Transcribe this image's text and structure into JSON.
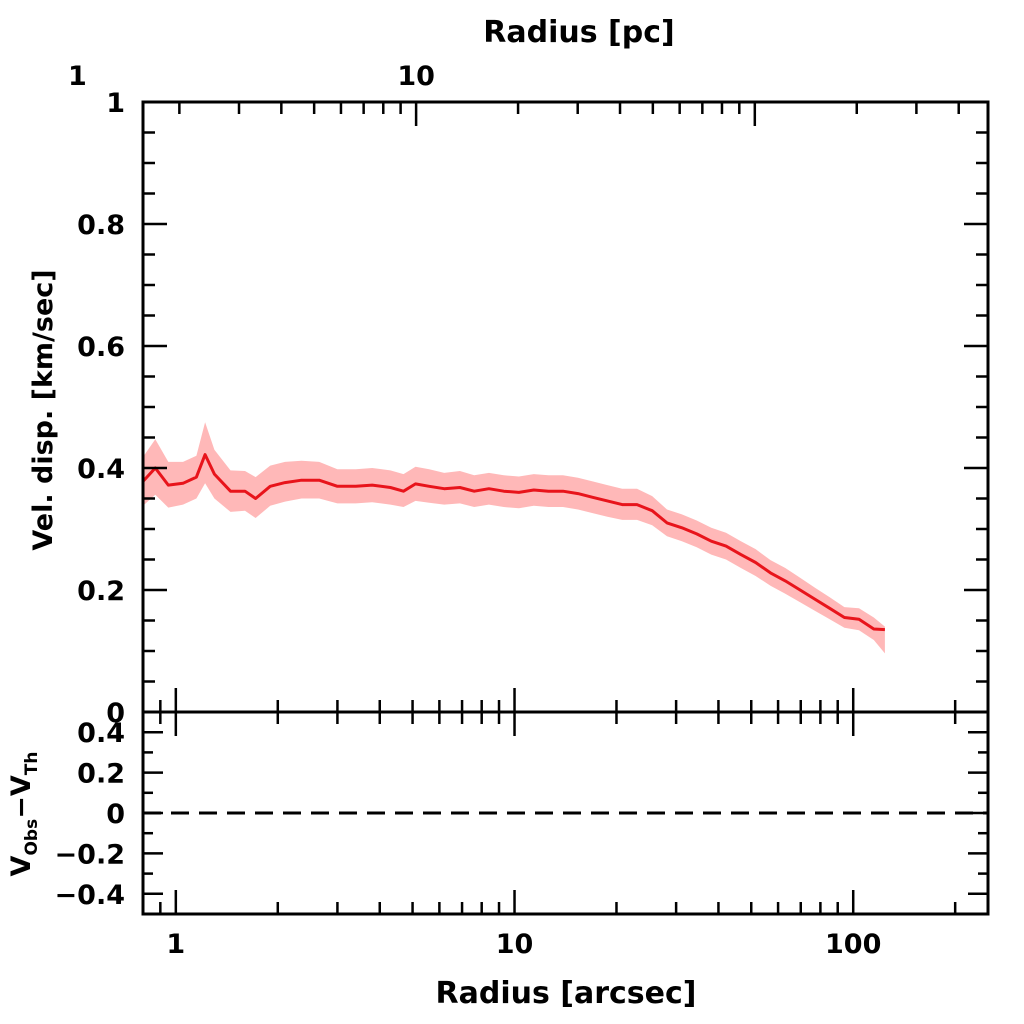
{
  "chart_data": [
    {
      "type": "area",
      "panel": "top",
      "xlabel": "Radius [arcsec]",
      "x2label": "Radius [pc]",
      "ylabel": "Vel. disp. [km/sec]",
      "xscale": "log",
      "xlim": [
        0.8,
        250
      ],
      "ylim": [
        0,
        1
      ],
      "x2scale": "log",
      "x2_at_x1": {
        "1": 1.9524,
        "10": 19.524
      },
      "x_ticklabels": [
        "1",
        "10",
        "100"
      ],
      "x2_ticklabels": [
        "1",
        "10"
      ],
      "y_ticklabels": [
        "0",
        "0.2",
        "0.4",
        "0.6",
        "0.8",
        "1"
      ],
      "grid": false,
      "x": [
        0.8,
        0.87,
        0.95,
        1.05,
        1.15,
        1.22,
        1.3,
        1.45,
        1.6,
        1.72,
        1.9,
        2.1,
        2.35,
        2.65,
        3.0,
        3.4,
        3.8,
        4.3,
        4.7,
        5.1,
        5.6,
        6.2,
        6.9,
        7.6,
        8.4,
        9.3,
        10.3,
        11.4,
        12.6,
        13.9,
        15.4,
        17.0,
        18.8,
        20.8,
        23.0,
        25.5,
        28.2,
        31.2,
        34.5,
        38.1,
        42.1,
        46.6,
        51.5,
        57.0,
        63.0,
        69.7,
        77.0,
        85.2,
        94.2,
        104,
        115,
        124
      ],
      "series": [
        {
          "values": [
            0.378,
            0.4,
            0.372,
            0.375,
            0.385,
            0.422,
            0.39,
            0.362,
            0.362,
            0.35,
            0.37,
            0.376,
            0.38,
            0.38,
            0.37,
            0.37,
            0.372,
            0.368,
            0.362,
            0.374,
            0.37,
            0.366,
            0.368,
            0.362,
            0.366,
            0.362,
            0.36,
            0.364,
            0.362,
            0.362,
            0.358,
            0.352,
            0.346,
            0.34,
            0.34,
            0.33,
            0.31,
            0.302,
            0.292,
            0.28,
            0.272,
            0.258,
            0.245,
            0.228,
            0.215,
            0.2,
            0.185,
            0.17,
            0.155,
            0.152,
            0.136,
            0.135
          ],
          "lower": [
            0.338,
            0.356,
            0.335,
            0.34,
            0.35,
            0.375,
            0.35,
            0.328,
            0.33,
            0.318,
            0.338,
            0.345,
            0.35,
            0.35,
            0.342,
            0.342,
            0.344,
            0.34,
            0.336,
            0.346,
            0.343,
            0.34,
            0.342,
            0.336,
            0.34,
            0.336,
            0.334,
            0.338,
            0.336,
            0.336,
            0.332,
            0.326,
            0.32,
            0.315,
            0.315,
            0.306,
            0.288,
            0.28,
            0.27,
            0.258,
            0.25,
            0.236,
            0.223,
            0.207,
            0.194,
            0.18,
            0.166,
            0.152,
            0.138,
            0.134,
            0.118,
            0.096
          ],
          "upper": [
            0.418,
            0.447,
            0.41,
            0.41,
            0.42,
            0.475,
            0.43,
            0.396,
            0.395,
            0.385,
            0.404,
            0.41,
            0.412,
            0.41,
            0.398,
            0.398,
            0.4,
            0.396,
            0.39,
            0.402,
            0.398,
            0.392,
            0.395,
            0.388,
            0.392,
            0.388,
            0.386,
            0.39,
            0.388,
            0.388,
            0.384,
            0.378,
            0.372,
            0.366,
            0.366,
            0.354,
            0.332,
            0.324,
            0.314,
            0.302,
            0.294,
            0.28,
            0.267,
            0.249,
            0.236,
            0.22,
            0.204,
            0.188,
            0.172,
            0.17,
            0.155,
            0.14
          ],
          "color": "#e8141b",
          "band_color": "#ffb8b8"
        }
      ]
    },
    {
      "type": "line",
      "panel": "bottom",
      "xlabel": "Radius [arcsec]",
      "ylabel": "V_Obs − V_Th",
      "xscale": "log",
      "xlim": [
        0.8,
        250
      ],
      "ylim": [
        -0.5,
        0.5
      ],
      "y_ticklabels": [
        "−0.4",
        "−0.2",
        "0",
        "0.2",
        "0.4"
      ],
      "reference_line": {
        "y": 0,
        "style": "dashed"
      },
      "grid": false
    }
  ],
  "labels": {
    "top_axis_title": "Radius [pc]",
    "bottom_axis_title": "Radius [arcsec]",
    "y_axis_title_top": "Vel. disp. [km/sec]",
    "y_axis_title_bottom_v1": "V",
    "y_axis_title_bottom_sub1": "Obs",
    "y_axis_title_bottom_minus": "−V",
    "y_axis_title_bottom_sub2": "Th"
  }
}
